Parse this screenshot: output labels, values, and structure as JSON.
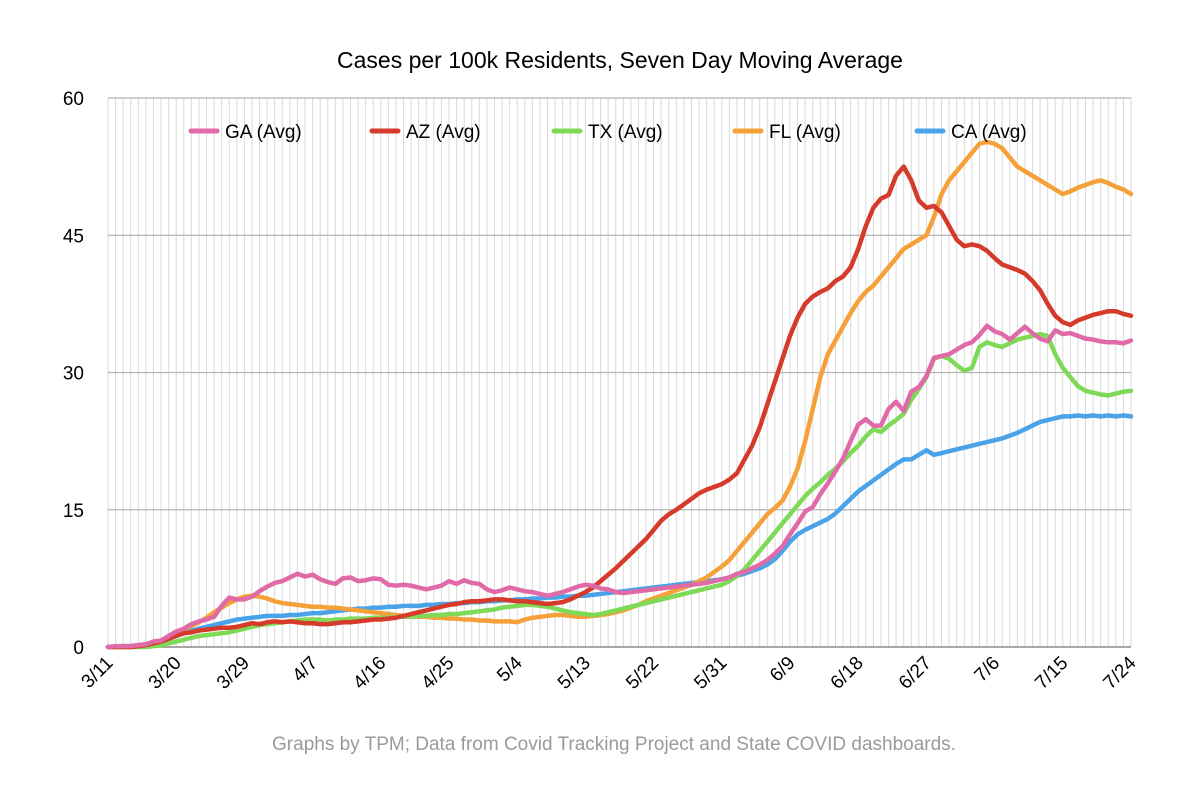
{
  "chart_data": {
    "type": "line",
    "title": "Cases per 100k Residents, Seven Day Moving Average",
    "footnote": "Graphs by TPM; Data from Covid Tracking Project and State COVID dashboards.",
    "xlabel": "",
    "ylabel": "",
    "ylim": [
      0,
      60
    ],
    "yticks": [
      0,
      15,
      30,
      45,
      60
    ],
    "x_start": "3/11",
    "x_count": 136,
    "x_tick_labels": [
      "3/11",
      "3/20",
      "3/29",
      "4/7",
      "4/16",
      "4/25",
      "5/4",
      "5/13",
      "5/22",
      "5/31",
      "6/9",
      "6/18",
      "6/27",
      "7/6",
      "7/15",
      "7/24"
    ],
    "grid": "vertical and horizontal gridlines",
    "legend_position": "top",
    "series": [
      {
        "name": "GA (Avg)",
        "color": "#e06aa8",
        "values": [
          0.0,
          0.1,
          0.1,
          0.1,
          0.2,
          0.3,
          0.6,
          0.7,
          1.2,
          1.7,
          2.0,
          2.5,
          2.8,
          3.0,
          3.3,
          4.5,
          5.4,
          5.2,
          5.2,
          5.5,
          6.1,
          6.6,
          7.0,
          7.2,
          7.6,
          8.0,
          7.7,
          7.9,
          7.4,
          7.1,
          6.9,
          7.5,
          7.6,
          7.2,
          7.3,
          7.5,
          7.4,
          6.8,
          6.7,
          6.8,
          6.7,
          6.5,
          6.3,
          6.5,
          6.7,
          7.2,
          6.9,
          7.3,
          7.0,
          6.9,
          6.3,
          6.0,
          6.2,
          6.5,
          6.3,
          6.1,
          6.0,
          5.8,
          5.6,
          5.8,
          6.0,
          6.3,
          6.6,
          6.8,
          6.7,
          6.4,
          6.3,
          6.0,
          5.9,
          6.0,
          6.1,
          6.2,
          6.3,
          6.4,
          6.5,
          6.6,
          6.7,
          6.8,
          6.9,
          7.0,
          7.2,
          7.4,
          7.6,
          8.0,
          8.2,
          8.6,
          9.0,
          9.5,
          10.2,
          11.0,
          12.3,
          13.5,
          14.8,
          15.3,
          16.7,
          17.9,
          19.2,
          20.6,
          22.5,
          24.3,
          24.9,
          24.2,
          24.2,
          26.0,
          26.8,
          25.8,
          27.9,
          28.4,
          29.6,
          31.6,
          31.8,
          32.0,
          32.5,
          33.0,
          33.3,
          34.1,
          35.1,
          34.5,
          34.2,
          33.6,
          34.3,
          35.0,
          34.3,
          33.7,
          33.4,
          34.6,
          34.2,
          34.3,
          34.0,
          33.7,
          33.6,
          33.4,
          33.3,
          33.3,
          33.2,
          33.5
        ]
      },
      {
        "name": "AZ (Avg)",
        "color": "#d63a2a",
        "values": [
          0.0,
          0.0,
          0.0,
          0.0,
          0.1,
          0.2,
          0.4,
          0.6,
          0.9,
          1.2,
          1.5,
          1.6,
          1.8,
          1.9,
          2.0,
          2.1,
          2.1,
          2.2,
          2.4,
          2.6,
          2.5,
          2.7,
          2.8,
          2.7,
          2.8,
          2.7,
          2.6,
          2.6,
          2.5,
          2.5,
          2.6,
          2.7,
          2.7,
          2.8,
          2.9,
          3.0,
          3.0,
          3.1,
          3.2,
          3.4,
          3.6,
          3.8,
          4.0,
          4.2,
          4.4,
          4.6,
          4.7,
          4.9,
          5.0,
          5.0,
          5.1,
          5.2,
          5.2,
          5.1,
          5.0,
          5.0,
          4.9,
          4.8,
          4.7,
          4.8,
          4.9,
          5.2,
          5.6,
          6.0,
          6.5,
          7.2,
          7.9,
          8.6,
          9.4,
          10.2,
          11.0,
          11.8,
          12.8,
          13.8,
          14.5,
          15.0,
          15.6,
          16.2,
          16.8,
          17.2,
          17.5,
          17.8,
          18.3,
          19.0,
          20.5,
          22.0,
          24.0,
          26.5,
          29.0,
          31.5,
          34.0,
          36.0,
          37.5,
          38.3,
          38.8,
          39.2,
          40.0,
          40.5,
          41.5,
          43.5,
          46.0,
          48.0,
          49.0,
          49.4,
          51.5,
          52.5,
          51.0,
          48.8,
          48.0,
          48.2,
          47.5,
          46.0,
          44.5,
          43.8,
          44.0,
          43.8,
          43.3,
          42.5,
          41.8,
          41.5,
          41.2,
          40.8,
          40.0,
          39.0,
          37.5,
          36.2,
          35.5,
          35.2,
          35.7,
          36.0,
          36.3,
          36.5,
          36.7,
          36.7,
          36.4,
          36.2
        ]
      },
      {
        "name": "TX (Avg)",
        "color": "#7ed957",
        "values": [
          0.0,
          0.0,
          0.0,
          0.0,
          0.0,
          0.0,
          0.1,
          0.2,
          0.4,
          0.6,
          0.8,
          1.0,
          1.2,
          1.3,
          1.4,
          1.5,
          1.6,
          1.8,
          2.0,
          2.2,
          2.4,
          2.5,
          2.6,
          2.7,
          2.8,
          2.9,
          3.0,
          3.0,
          3.0,
          2.9,
          3.0,
          3.0,
          3.1,
          3.1,
          3.1,
          3.2,
          3.2,
          3.2,
          3.3,
          3.3,
          3.3,
          3.4,
          3.4,
          3.5,
          3.5,
          3.6,
          3.6,
          3.7,
          3.8,
          3.9,
          4.0,
          4.1,
          4.3,
          4.4,
          4.5,
          4.6,
          4.6,
          4.5,
          4.4,
          4.2,
          4.0,
          3.8,
          3.7,
          3.6,
          3.5,
          3.6,
          3.8,
          4.0,
          4.2,
          4.4,
          4.6,
          4.8,
          5.0,
          5.2,
          5.4,
          5.6,
          5.8,
          6.0,
          6.2,
          6.4,
          6.6,
          6.8,
          7.2,
          7.8,
          8.5,
          9.5,
          10.5,
          11.5,
          12.5,
          13.5,
          14.5,
          15.5,
          16.5,
          17.3,
          18.0,
          18.8,
          19.5,
          20.3,
          21.2,
          22.0,
          23.0,
          23.8,
          23.5,
          24.2,
          24.8,
          25.5,
          27.0,
          28.2,
          29.5,
          31.5,
          31.8,
          31.5,
          30.8,
          30.2,
          30.5,
          32.8,
          33.3,
          33.0,
          32.8,
          33.2,
          33.6,
          33.8,
          34.0,
          34.2,
          34.0,
          32.0,
          30.5,
          29.5,
          28.5,
          28.0,
          27.8,
          27.6,
          27.5,
          27.7,
          27.9,
          28.0
        ]
      },
      {
        "name": "FL (Avg)",
        "color": "#f5a13a",
        "values": [
          0.0,
          0.0,
          0.0,
          0.0,
          0.1,
          0.2,
          0.4,
          0.7,
          1.1,
          1.5,
          1.9,
          2.3,
          2.7,
          3.2,
          3.8,
          4.3,
          4.8,
          5.2,
          5.5,
          5.6,
          5.5,
          5.3,
          5.0,
          4.8,
          4.7,
          4.6,
          4.5,
          4.4,
          4.4,
          4.3,
          4.3,
          4.2,
          4.1,
          4.0,
          3.9,
          3.8,
          3.7,
          3.6,
          3.5,
          3.4,
          3.4,
          3.3,
          3.3,
          3.2,
          3.2,
          3.1,
          3.1,
          3.0,
          3.0,
          2.9,
          2.9,
          2.8,
          2.8,
          2.8,
          2.7,
          3.0,
          3.2,
          3.3,
          3.4,
          3.5,
          3.5,
          3.4,
          3.3,
          3.3,
          3.4,
          3.5,
          3.6,
          3.8,
          4.0,
          4.3,
          4.6,
          5.0,
          5.3,
          5.6,
          5.9,
          6.2,
          6.5,
          6.8,
          7.2,
          7.6,
          8.2,
          8.8,
          9.5,
          10.5,
          11.5,
          12.5,
          13.5,
          14.5,
          15.2,
          16.0,
          17.5,
          19.5,
          22.5,
          26.0,
          29.5,
          32.0,
          33.5,
          35.0,
          36.5,
          37.8,
          38.8,
          39.5,
          40.5,
          41.5,
          42.5,
          43.5,
          44.0,
          44.5,
          45.0,
          47.0,
          49.5,
          51.0,
          52.0,
          53.0,
          54.0,
          55.0,
          55.2,
          55.0,
          54.5,
          53.5,
          52.5,
          52.0,
          51.5,
          51.0,
          50.5,
          50.0,
          49.5,
          49.8,
          50.2,
          50.5,
          50.8,
          51.0,
          50.7,
          50.3,
          50.0,
          49.5
        ]
      },
      {
        "name": "CA (Avg)",
        "color": "#4aa3e8",
        "values": [
          0.0,
          0.0,
          0.1,
          0.1,
          0.2,
          0.3,
          0.5,
          0.7,
          0.9,
          1.2,
          1.5,
          1.8,
          2.0,
          2.2,
          2.4,
          2.6,
          2.8,
          3.0,
          3.1,
          3.2,
          3.3,
          3.4,
          3.4,
          3.4,
          3.5,
          3.5,
          3.6,
          3.7,
          3.7,
          3.8,
          3.9,
          4.0,
          4.1,
          4.2,
          4.2,
          4.3,
          4.3,
          4.4,
          4.4,
          4.5,
          4.5,
          4.5,
          4.6,
          4.6,
          4.7,
          4.7,
          4.8,
          4.8,
          4.9,
          4.9,
          5.0,
          5.0,
          5.1,
          5.1,
          5.2,
          5.2,
          5.3,
          5.3,
          5.4,
          5.4,
          5.5,
          5.5,
          5.6,
          5.6,
          5.7,
          5.8,
          5.9,
          6.0,
          6.1,
          6.2,
          6.3,
          6.4,
          6.5,
          6.6,
          6.7,
          6.8,
          6.9,
          7.0,
          7.1,
          7.2,
          7.3,
          7.4,
          7.6,
          7.8,
          8.0,
          8.3,
          8.6,
          9.0,
          9.6,
          10.5,
          11.5,
          12.3,
          12.8,
          13.2,
          13.6,
          14.0,
          14.6,
          15.4,
          16.2,
          17.0,
          17.6,
          18.2,
          18.8,
          19.4,
          20.0,
          20.5,
          20.5,
          21.0,
          21.5,
          21.0,
          21.2,
          21.4,
          21.6,
          21.8,
          22.0,
          22.2,
          22.4,
          22.6,
          22.8,
          23.1,
          23.4,
          23.8,
          24.2,
          24.6,
          24.8,
          25.0,
          25.2,
          25.2,
          25.3,
          25.2,
          25.3,
          25.2,
          25.3,
          25.2,
          25.3,
          25.2
        ]
      }
    ]
  }
}
